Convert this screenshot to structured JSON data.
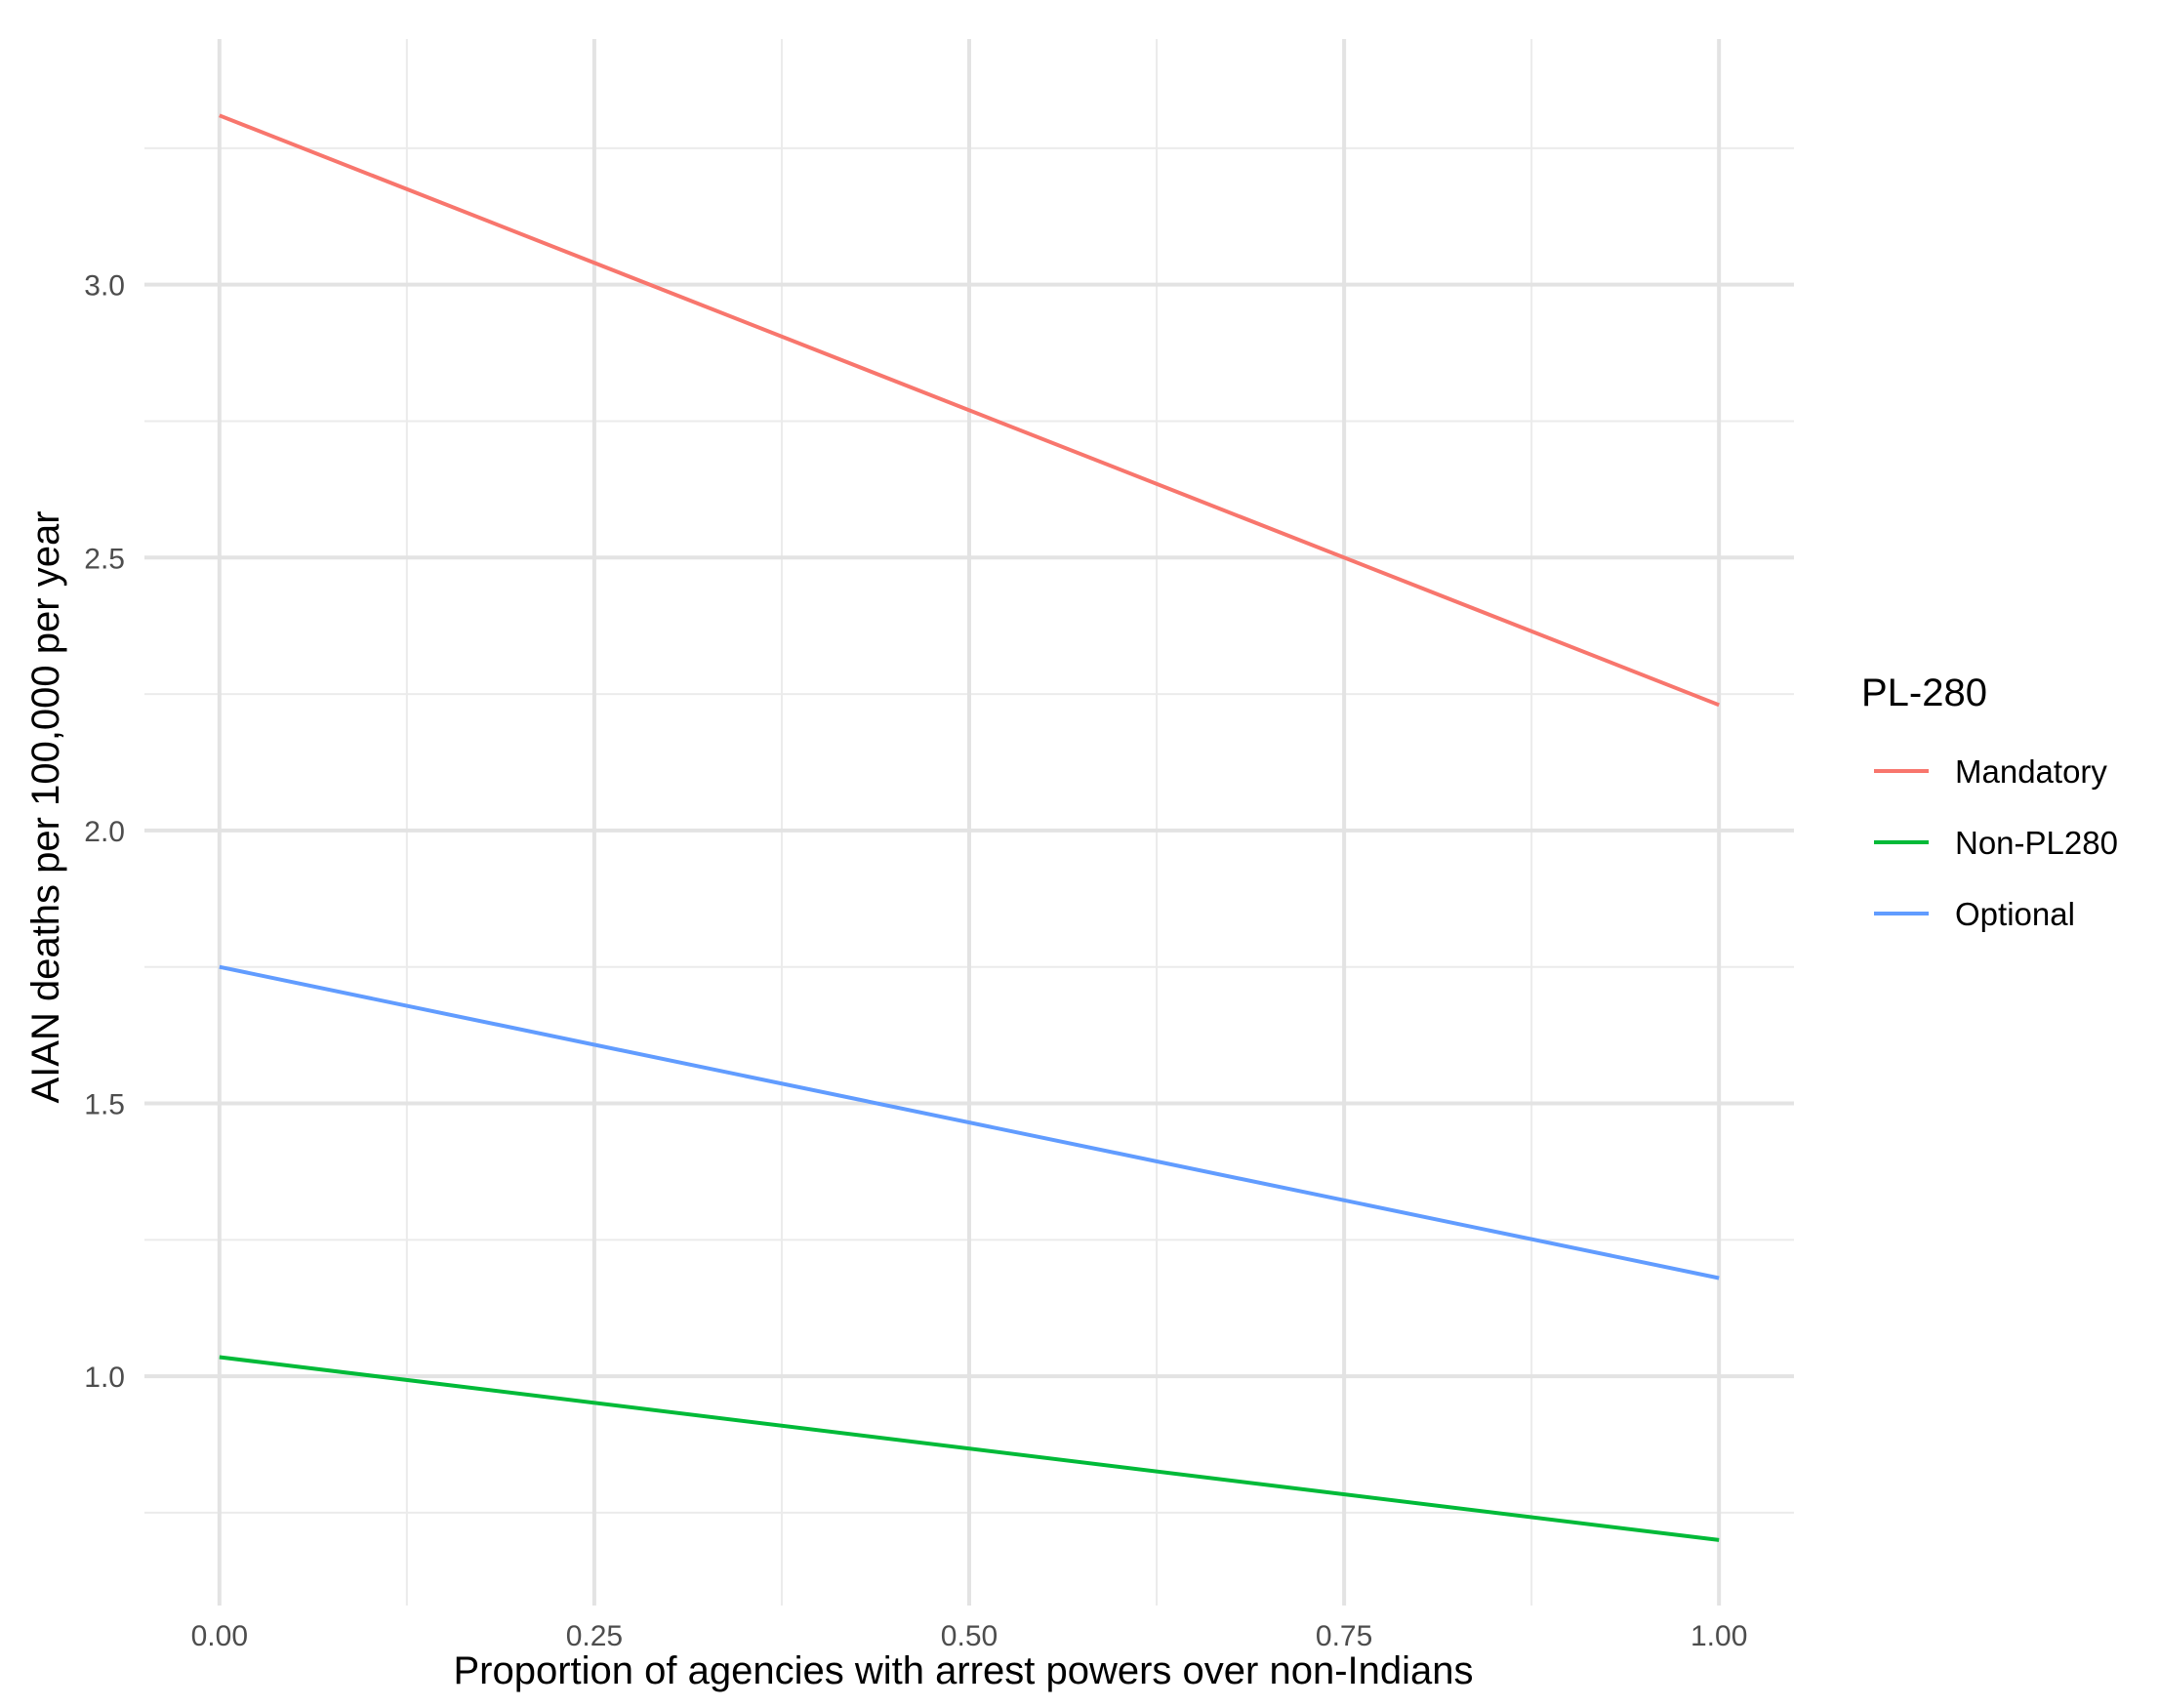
{
  "chart_data": {
    "type": "line",
    "title": "",
    "xlabel": "Proportion of agencies with arrest powers over non-Indians",
    "ylabel": "AIAN deaths per 100,000 per year",
    "xlim": [
      -0.05,
      1.05
    ],
    "ylim": [
      0.58,
      3.45
    ],
    "x_ticks": [
      0,
      0.25,
      0.5,
      0.75,
      1
    ],
    "x_tick_labels": [
      "0.00",
      "0.25",
      "0.50",
      "0.75",
      "1.00"
    ],
    "x_minor_ticks": [
      0.125,
      0.375,
      0.625,
      0.875
    ],
    "y_ticks": [
      1,
      1.5,
      2,
      2.5,
      3
    ],
    "y_tick_labels": [
      "1.0",
      "1.5",
      "2.0",
      "2.5",
      "3.0"
    ],
    "y_minor_ticks": [
      0.75,
      1.25,
      1.75,
      2.25,
      2.75,
      3.25
    ],
    "grid": true,
    "legend": {
      "title": "PL-280",
      "placement": "right"
    },
    "series": [
      {
        "name": "Mandatory",
        "color": "#F8766D",
        "x": [
          0,
          1
        ],
        "y": [
          3.31,
          2.23
        ]
      },
      {
        "name": "Non-PL280",
        "color": "#00BA38",
        "x": [
          0,
          1
        ],
        "y": [
          1.035,
          0.7
        ]
      },
      {
        "name": "Optional",
        "color": "#619CFF",
        "x": [
          0,
          1
        ],
        "y": [
          1.75,
          1.18
        ]
      }
    ]
  }
}
